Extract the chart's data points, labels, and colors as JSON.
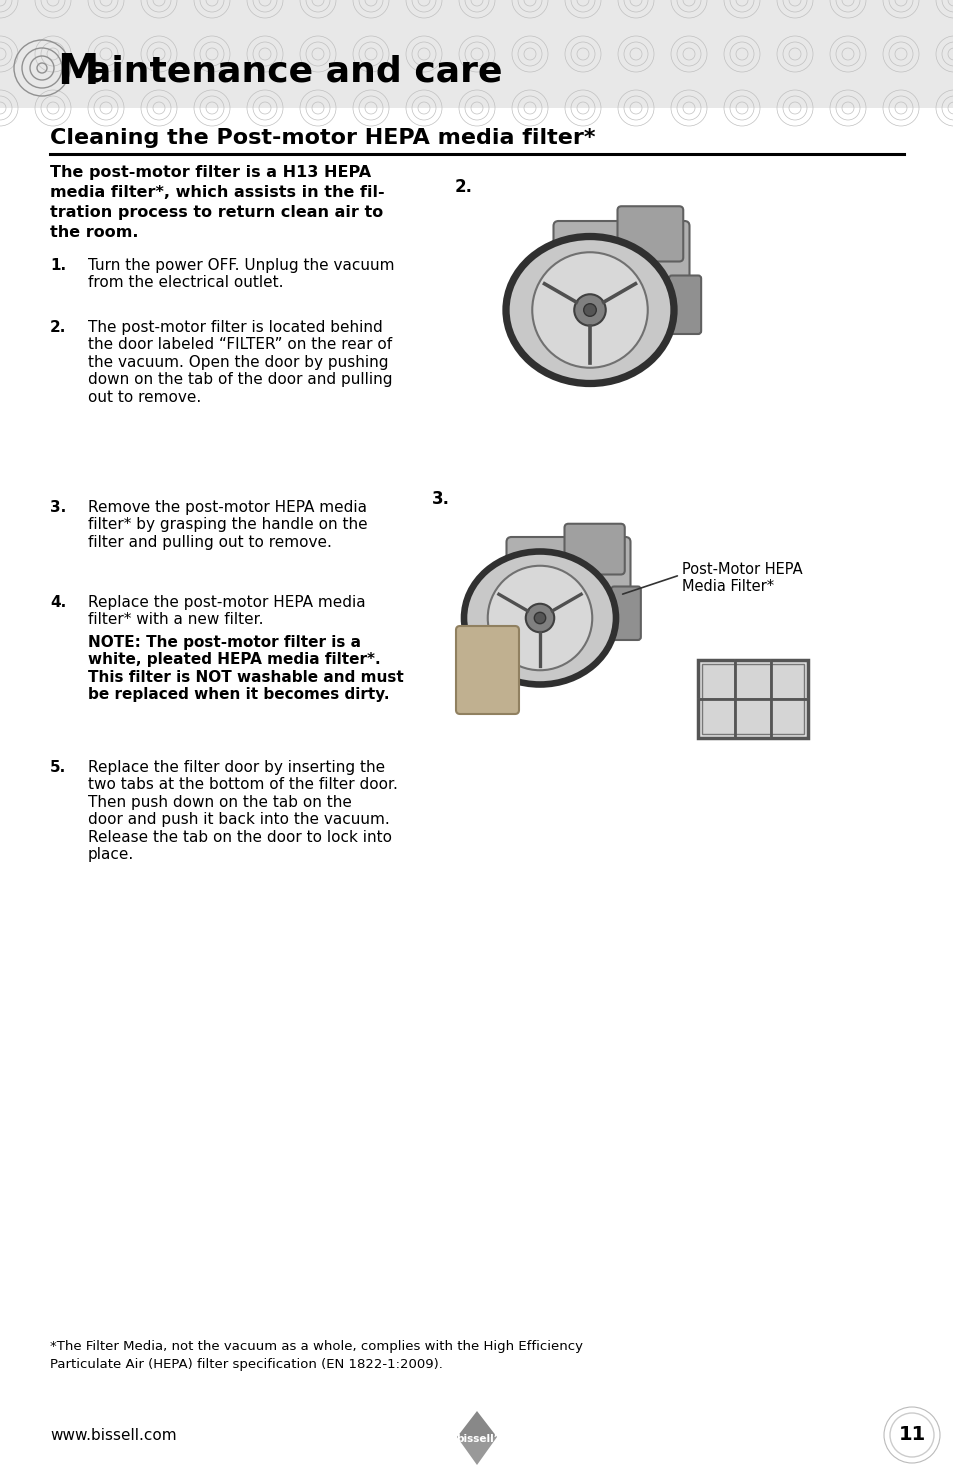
{
  "page_bg": "#ffffff",
  "header_bg": "#e5e5e5",
  "header_title": "aintenance and care",
  "header_M": "M",
  "section_title": "Cleaning the Post-motor HEPA media filter*",
  "intro_bold_lines": [
    "The post-motor filter is a H13 HEPA",
    "media filter*, which assists in the fil-",
    "tration process to return clean air to",
    "the room."
  ],
  "steps": [
    {
      "num": "1.",
      "text": "Turn the power OFF. Unplug the vacuum\nfrom the electrical outlet."
    },
    {
      "num": "2.",
      "text": "The post-motor filter is located behind\nthe door labeled “FILTER” on the rear of\nthe vacuum. Open the door by pushing\ndown on the tab of the door and pulling\nout to remove."
    },
    {
      "num": "3.",
      "text": "Remove the post-motor HEPA media\nfilter* by grasping the handle on the\nfilter and pulling out to remove."
    },
    {
      "num": "4.",
      "text": "Replace the post-motor HEPA media\nfilter* with a new filter."
    },
    {
      "num": "5.",
      "text": "Replace the filter door by inserting the\ntwo tabs at the bottom of the filter door.\nThen push down on the tab on the\ndoor and push it back into the vacuum.\nRelease the tab on the door to lock into\nplace."
    }
  ],
  "note_text": "NOTE: The post-motor filter is a\nwhite, pleated HEPA media filter*.\nThis filter is NOT washable and must\nbe replaced when it becomes dirty.",
  "label_3": "Post-Motor HEPA\nMedia Filter*",
  "footnote_line1": "*The Filter Media, not the vacuum as a whole, complies with the High Efficiency",
  "footnote_line2": "Particulate Air (HEPA) filter specification (EN 1822-1:2009).",
  "website": "www.bissell.com",
  "page_num": "11"
}
